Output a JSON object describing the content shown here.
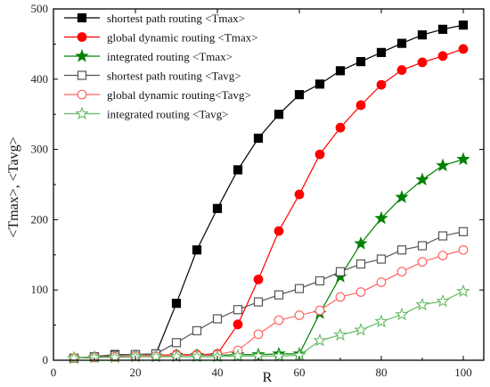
{
  "chart_data": {
    "type": "line",
    "title": "",
    "xlabel": "R",
    "ylabel": "<Tmax>, <Tavg>",
    "xlim": [
      0,
      105
    ],
    "ylim": [
      0,
      500
    ],
    "xticks": [
      0,
      20,
      40,
      60,
      80,
      100
    ],
    "yticks": [
      0,
      100,
      200,
      300,
      400,
      500
    ],
    "grid": false,
    "legend_position": "top-left",
    "x": [
      5,
      10,
      15,
      20,
      25,
      30,
      35,
      40,
      45,
      50,
      55,
      60,
      65,
      70,
      75,
      80,
      85,
      90,
      95,
      100
    ],
    "series": [
      {
        "name": "shortest path routing <Tmax>",
        "color": "#000000",
        "marker": "square",
        "filled": true,
        "values": [
          3,
          5,
          8,
          8,
          9,
          81,
          157,
          216,
          271,
          316,
          350,
          378,
          393,
          412,
          425,
          438,
          451,
          463,
          471,
          477
        ]
      },
      {
        "name": "global dynamic routing <Tmax>",
        "color": "#ff0000",
        "marker": "circle",
        "filled": true,
        "values": [
          3,
          4,
          5,
          6,
          7,
          8,
          8,
          9,
          51,
          115,
          184,
          236,
          293,
          331,
          363,
          392,
          413,
          424,
          433,
          443
        ]
      },
      {
        "name": "integrated routing <Tmax>",
        "color": "#008000",
        "marker": "star",
        "filled": true,
        "values": [
          3,
          4,
          5,
          6,
          6,
          7,
          7,
          7,
          8,
          8,
          9,
          9,
          67,
          119,
          166,
          202,
          232,
          257,
          277,
          286
        ]
      },
      {
        "name": "shortest path routing <Tavg>",
        "color": "#555555",
        "marker": "square",
        "filled": false,
        "values": [
          3,
          5,
          7,
          8,
          9,
          25,
          42,
          59,
          72,
          83,
          93,
          102,
          113,
          126,
          137,
          144,
          157,
          163,
          177,
          183
        ]
      },
      {
        "name": "global dynamic routing<Tavg>",
        "color": "#ff6666",
        "marker": "circle",
        "filled": false,
        "values": [
          3,
          4,
          5,
          6,
          6,
          7,
          7,
          8,
          14,
          37,
          57,
          64,
          71,
          90,
          97,
          111,
          126,
          140,
          149,
          157
        ]
      },
      {
        "name": "integrated routing <Tavg>",
        "color": "#66bb66",
        "marker": "star",
        "filled": false,
        "values": [
          3,
          4,
          4,
          5,
          5,
          5,
          5,
          5,
          6,
          6,
          6,
          7,
          28,
          36,
          43,
          55,
          65,
          79,
          84,
          98
        ]
      }
    ]
  }
}
